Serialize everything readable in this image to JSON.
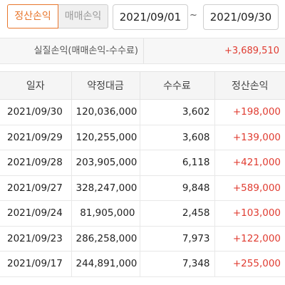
{
  "tabs": [
    {
      "label": "정산손익",
      "active": true
    },
    {
      "label": "매매손익",
      "active": false
    }
  ],
  "date_range": {
    "from": "2021/09/01",
    "separator": "~",
    "to": "2021/09/30"
  },
  "summary": {
    "label": "실질손익(매매손익-수수료)",
    "value": "+3,689,510"
  },
  "table": {
    "headers": [
      "일자",
      "약정대금",
      "수수료",
      "정산손익"
    ],
    "rows": [
      {
        "date": "2021/09/30",
        "amount": "120,036,000",
        "fee": "3,602",
        "pl": "+198,000"
      },
      {
        "date": "2021/09/29",
        "amount": "120,255,000",
        "fee": "3,608",
        "pl": "+139,000"
      },
      {
        "date": "2021/09/28",
        "amount": "203,905,000",
        "fee": "6,118",
        "pl": "+421,000"
      },
      {
        "date": "2021/09/27",
        "amount": "328,247,000",
        "fee": "9,848",
        "pl": "+589,000"
      },
      {
        "date": "2021/09/24",
        "amount": "81,905,000",
        "fee": "2,458",
        "pl": "+103,000"
      },
      {
        "date": "2021/09/23",
        "amount": "286,258,000",
        "fee": "7,973",
        "pl": "+122,000"
      },
      {
        "date": "2021/09/17",
        "amount": "244,891,000",
        "fee": "7,348",
        "pl": "+255,000"
      }
    ]
  },
  "colors": {
    "accent": "#e8762c",
    "profit": "#e03c31"
  }
}
